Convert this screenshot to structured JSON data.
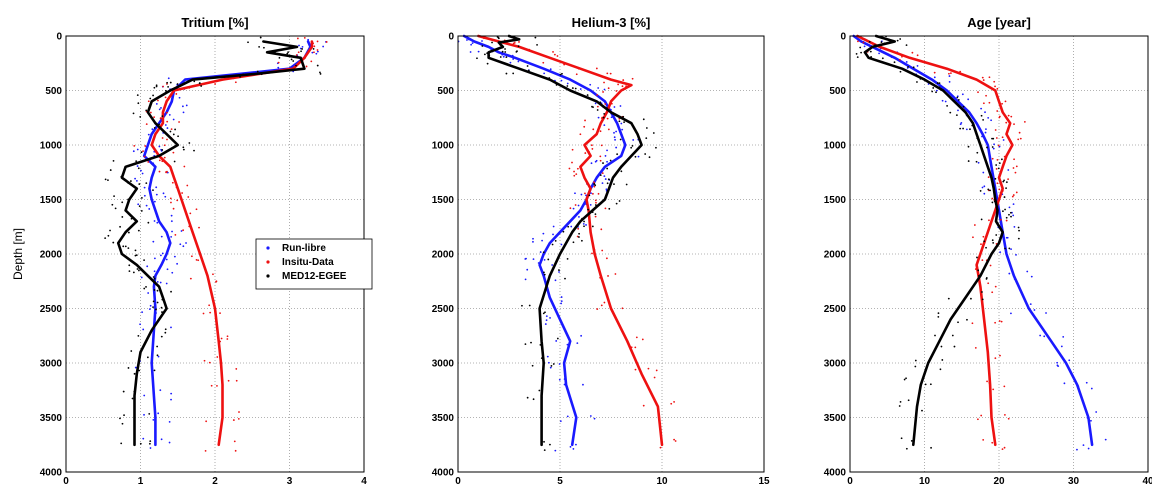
{
  "chart_data": [
    {
      "type": "line",
      "title": "Tritium [%]",
      "ylabel": "Depth [m]",
      "xlabel": "",
      "xlim": [
        0,
        4
      ],
      "ylim": [
        0,
        4000
      ],
      "y_reversed": true,
      "grid": true,
      "xticks": [
        "0",
        "1",
        "2",
        "3",
        "4"
      ],
      "yticks": [
        "0",
        "500",
        "1000",
        "1500",
        "2000",
        "2500",
        "3000",
        "3500",
        "4000"
      ],
      "legend": {
        "placement": "right-middle",
        "entries": [
          "Run-libre",
          "Insitu-Data",
          "MED12-EGEE"
        ]
      },
      "series": [
        {
          "name": "Run-libre",
          "color": "#1a1aff",
          "depth": [
            50,
            100,
            200,
            300,
            400,
            500,
            600,
            700,
            800,
            900,
            1000,
            1100,
            1200,
            1300,
            1400,
            1500,
            1600,
            1700,
            1800,
            1900,
            2000,
            2100,
            2200,
            2300,
            2500,
            2700,
            3000,
            3300,
            3500,
            3750
          ],
          "value": [
            3.25,
            3.28,
            3.2,
            3.0,
            1.6,
            1.45,
            1.42,
            1.35,
            1.25,
            1.15,
            1.1,
            1.05,
            1.2,
            1.15,
            1.12,
            1.15,
            1.2,
            1.25,
            1.35,
            1.4,
            1.35,
            1.28,
            1.2,
            1.18,
            1.2,
            1.18,
            1.15,
            1.18,
            1.2,
            1.2
          ]
        },
        {
          "name": "Insitu-Data",
          "color": "#ee1111",
          "depth": [
            50,
            100,
            200,
            300,
            400,
            500,
            600,
            700,
            800,
            900,
            1000,
            1100,
            1200,
            1300,
            1400,
            1500,
            1600,
            1800,
            2000,
            2200,
            2500,
            2800,
            3000,
            3200,
            3500,
            3750
          ],
          "value": [
            3.3,
            3.3,
            3.2,
            3.05,
            2.1,
            1.45,
            1.35,
            1.3,
            1.3,
            1.2,
            1.15,
            1.25,
            1.4,
            1.45,
            1.5,
            1.55,
            1.6,
            1.7,
            1.8,
            1.9,
            2.0,
            2.05,
            2.08,
            2.1,
            2.1,
            2.05
          ]
        },
        {
          "name": "MED12-EGEE",
          "color": "#000000",
          "depth": [
            50,
            100,
            150,
            200,
            300,
            350,
            400,
            450,
            500,
            600,
            700,
            800,
            900,
            1000,
            1100,
            1200,
            1300,
            1400,
            1500,
            1600,
            1700,
            1800,
            1900,
            2000,
            2100,
            2200,
            2300,
            2400,
            2500,
            2700,
            2900,
            3100,
            3300,
            3500,
            3750
          ],
          "value": [
            2.65,
            3.1,
            2.7,
            3.15,
            3.2,
            2.5,
            1.7,
            1.55,
            1.4,
            1.15,
            1.1,
            1.2,
            1.35,
            1.5,
            1.25,
            0.8,
            0.75,
            0.95,
            0.85,
            0.8,
            0.95,
            0.8,
            0.7,
            0.75,
            0.95,
            1.1,
            1.25,
            1.3,
            1.35,
            1.15,
            1.0,
            0.95,
            0.92,
            0.92,
            0.92
          ]
        }
      ]
    },
    {
      "type": "line",
      "title": "Helium-3 [%]",
      "xlabel": "",
      "ylabel": "",
      "xlim": [
        0,
        15
      ],
      "ylim": [
        0,
        4000
      ],
      "y_reversed": true,
      "grid": true,
      "xticks": [
        "0",
        "5",
        "10",
        "15"
      ],
      "yticks": [
        "0",
        "500",
        "1000",
        "1500",
        "2000",
        "2500",
        "3000",
        "3500",
        "4000"
      ],
      "series": [
        {
          "name": "Run-libre",
          "color": "#1a1aff",
          "depth": [
            0,
            50,
            100,
            150,
            200,
            300,
            400,
            500,
            600,
            700,
            800,
            900,
            1000,
            1100,
            1200,
            1300,
            1400,
            1500,
            1600,
            1700,
            1800,
            1900,
            2000,
            2100,
            2200,
            2400,
            2600,
            2800,
            3000,
            3200,
            3500,
            3750
          ],
          "value": [
            0.3,
            0.8,
            1.5,
            2.0,
            2.8,
            4.2,
            5.5,
            6.5,
            7.2,
            7.5,
            7.8,
            8.0,
            8.2,
            8.0,
            7.2,
            6.8,
            6.5,
            6.3,
            6.0,
            5.5,
            5.0,
            4.5,
            4.2,
            4.0,
            4.2,
            4.5,
            5.0,
            5.5,
            5.2,
            5.3,
            5.8,
            5.6
          ]
        },
        {
          "name": "Insitu-Data",
          "color": "#ee1111",
          "depth": [
            0,
            50,
            100,
            200,
            300,
            400,
            450,
            500,
            600,
            700,
            800,
            900,
            1000,
            1100,
            1200,
            1300,
            1400,
            1500,
            1600,
            1800,
            2000,
            2200,
            2500,
            2800,
            3100,
            3400,
            3750
          ],
          "value": [
            1.0,
            2.0,
            3.0,
            4.5,
            6.0,
            7.5,
            8.5,
            8.0,
            7.5,
            7.3,
            7.0,
            6.8,
            6.2,
            6.5,
            6.0,
            6.2,
            6.5,
            6.3,
            6.4,
            6.5,
            6.7,
            7.0,
            7.5,
            8.3,
            9.0,
            9.8,
            10.0
          ]
        },
        {
          "name": "MED12-EGEE",
          "color": "#000000",
          "depth": [
            0,
            30,
            60,
            100,
            150,
            200,
            300,
            400,
            500,
            600,
            700,
            800,
            900,
            1000,
            1100,
            1200,
            1300,
            1400,
            1500,
            1600,
            1700,
            1800,
            1900,
            2000,
            2200,
            2500,
            2800,
            3000,
            3300,
            3750
          ],
          "value": [
            2.5,
            3.0,
            2.0,
            2.2,
            1.5,
            1.5,
            3.0,
            4.5,
            5.5,
            6.8,
            7.5,
            8.5,
            8.8,
            9.0,
            8.5,
            8.0,
            7.6,
            7.4,
            7.2,
            6.6,
            6.0,
            5.6,
            5.3,
            5.0,
            4.5,
            4.0,
            4.1,
            4.2,
            4.1,
            4.1
          ]
        }
      ]
    },
    {
      "type": "line",
      "title": "Age [year]",
      "xlabel": "",
      "ylabel": "",
      "xlim": [
        0,
        40
      ],
      "ylim": [
        0,
        4000
      ],
      "y_reversed": true,
      "grid": true,
      "xticks": [
        "0",
        "10",
        "20",
        "30",
        "40"
      ],
      "yticks": [
        "0",
        "500",
        "1000",
        "1500",
        "2000",
        "2500",
        "3000",
        "3500",
        "4000"
      ],
      "series": [
        {
          "name": "Run-libre",
          "color": "#1a1aff",
          "depth": [
            0,
            50,
            100,
            200,
            300,
            400,
            500,
            600,
            700,
            800,
            900,
            1000,
            1200,
            1400,
            1600,
            1800,
            2000,
            2200,
            2500,
            2800,
            3000,
            3200,
            3500,
            3750
          ],
          "value": [
            0.5,
            1.5,
            3.0,
            6.0,
            8.5,
            11.0,
            13.0,
            14.5,
            16.0,
            17.0,
            17.8,
            18.5,
            19.0,
            19.5,
            20.0,
            20.5,
            21.0,
            22.0,
            24.0,
            27.0,
            29.0,
            30.5,
            32.0,
            32.5
          ]
        },
        {
          "name": "Insitu-Data",
          "color": "#ee1111",
          "depth": [
            0,
            100,
            200,
            300,
            400,
            500,
            600,
            700,
            800,
            900,
            1000,
            1100,
            1200,
            1300,
            1400,
            1500,
            1700,
            1900,
            2100,
            2300,
            2600,
            2900,
            3200,
            3500,
            3750
          ],
          "value": [
            1.0,
            4.0,
            8.0,
            13.0,
            17.0,
            19.5,
            20.0,
            20.5,
            21.5,
            21.0,
            21.8,
            21.0,
            20.5,
            20.0,
            20.5,
            20.0,
            19.0,
            18.0,
            17.0,
            17.5,
            18.0,
            18.5,
            18.8,
            19.0,
            19.5
          ]
        },
        {
          "name": "MED12-EGEE",
          "color": "#000000",
          "depth": [
            0,
            50,
            100,
            150,
            200,
            300,
            400,
            500,
            600,
            700,
            800,
            900,
            1000,
            1100,
            1200,
            1300,
            1400,
            1500,
            1600,
            1700,
            1800,
            1900,
            2000,
            2200,
            2400,
            2600,
            2800,
            3000,
            3200,
            3400,
            3750
          ],
          "value": [
            3.5,
            6.0,
            3.0,
            2.0,
            2.5,
            7.0,
            10.0,
            12.5,
            14.0,
            15.5,
            16.5,
            17.0,
            17.5,
            18.0,
            18.5,
            19.0,
            19.3,
            19.5,
            19.8,
            19.6,
            20.5,
            20.0,
            19.0,
            17.5,
            15.5,
            13.5,
            12.0,
            10.5,
            9.5,
            9.0,
            8.5
          ]
        }
      ]
    }
  ]
}
